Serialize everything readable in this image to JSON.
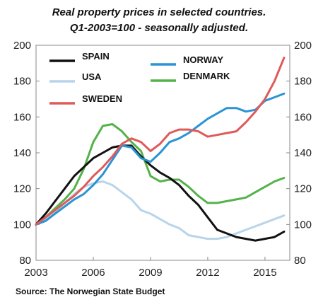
{
  "chart_data": {
    "type": "line",
    "title": "Real property prices in selected countries.",
    "subtitle": "Q1-2003=100 - seasonally adjusted.",
    "source": "Source: The Norwegian State Budget",
    "xlabel": "",
    "ylabel": "",
    "xlim": [
      2003,
      2016.3
    ],
    "ylim": [
      80,
      200
    ],
    "x_ticks": [
      2003,
      2006,
      2009,
      2012,
      2015
    ],
    "y_ticks": [
      80,
      100,
      120,
      140,
      160,
      180,
      200
    ],
    "y_axis_both_sides": true,
    "grid": false,
    "legend_position": "top-left",
    "series": [
      {
        "name": "SPAIN",
        "color": "#111111",
        "points": [
          [
            2003.0,
            100
          ],
          [
            2003.5,
            106
          ],
          [
            2004.0,
            113
          ],
          [
            2004.5,
            120
          ],
          [
            2005.0,
            127
          ],
          [
            2005.5,
            132
          ],
          [
            2006.0,
            137
          ],
          [
            2006.5,
            140
          ],
          [
            2007.0,
            143
          ],
          [
            2007.5,
            144
          ],
          [
            2008.0,
            144
          ],
          [
            2008.5,
            138
          ],
          [
            2009.0,
            133
          ],
          [
            2009.5,
            129
          ],
          [
            2010.0,
            126
          ],
          [
            2010.5,
            122
          ],
          [
            2011.0,
            116
          ],
          [
            2011.5,
            111
          ],
          [
            2012.0,
            104
          ],
          [
            2012.5,
            97
          ],
          [
            2013.0,
            95
          ],
          [
            2013.5,
            93
          ],
          [
            2014.0,
            92
          ],
          [
            2014.5,
            91
          ],
          [
            2015.0,
            92
          ],
          [
            2015.5,
            93
          ],
          [
            2016.0,
            96
          ]
        ]
      },
      {
        "name": "USA",
        "color": "#b8d4ea",
        "points": [
          [
            2003.0,
            100
          ],
          [
            2003.5,
            103
          ],
          [
            2004.0,
            107
          ],
          [
            2004.5,
            112
          ],
          [
            2005.0,
            117
          ],
          [
            2005.5,
            121
          ],
          [
            2006.0,
            123
          ],
          [
            2006.5,
            124
          ],
          [
            2007.0,
            122
          ],
          [
            2007.5,
            118
          ],
          [
            2008.0,
            114
          ],
          [
            2008.5,
            108
          ],
          [
            2009.0,
            106
          ],
          [
            2009.5,
            103
          ],
          [
            2010.0,
            100
          ],
          [
            2010.5,
            98
          ],
          [
            2011.0,
            94
          ],
          [
            2011.5,
            93
          ],
          [
            2012.0,
            92
          ],
          [
            2012.5,
            92
          ],
          [
            2013.0,
            93
          ],
          [
            2013.5,
            95
          ],
          [
            2014.0,
            97
          ],
          [
            2014.5,
            99
          ],
          [
            2015.0,
            101
          ],
          [
            2015.5,
            103
          ],
          [
            2016.0,
            105
          ]
        ]
      },
      {
        "name": "SWEDEN",
        "color": "#e05a5a",
        "points": [
          [
            2003.0,
            100
          ],
          [
            2003.5,
            104
          ],
          [
            2004.0,
            108
          ],
          [
            2004.5,
            112
          ],
          [
            2005.0,
            116
          ],
          [
            2005.5,
            121
          ],
          [
            2006.0,
            127
          ],
          [
            2006.5,
            132
          ],
          [
            2007.0,
            138
          ],
          [
            2007.5,
            145
          ],
          [
            2008.0,
            148
          ],
          [
            2008.5,
            146
          ],
          [
            2009.0,
            141
          ],
          [
            2009.5,
            145
          ],
          [
            2010.0,
            151
          ],
          [
            2010.5,
            153
          ],
          [
            2011.0,
            153
          ],
          [
            2011.5,
            152
          ],
          [
            2012.0,
            149
          ],
          [
            2012.5,
            150
          ],
          [
            2013.0,
            151
          ],
          [
            2013.5,
            152
          ],
          [
            2014.0,
            157
          ],
          [
            2014.5,
            163
          ],
          [
            2015.0,
            170
          ],
          [
            2015.5,
            180
          ],
          [
            2016.0,
            193
          ]
        ]
      },
      {
        "name": "NORWAY",
        "color": "#2a94d4",
        "points": [
          [
            2003.0,
            100
          ],
          [
            2003.5,
            102
          ],
          [
            2004.0,
            106
          ],
          [
            2004.5,
            110
          ],
          [
            2005.0,
            114
          ],
          [
            2005.5,
            117
          ],
          [
            2006.0,
            122
          ],
          [
            2006.5,
            128
          ],
          [
            2007.0,
            136
          ],
          [
            2007.5,
            144
          ],
          [
            2008.0,
            143
          ],
          [
            2008.5,
            137
          ],
          [
            2009.0,
            135
          ],
          [
            2009.5,
            140
          ],
          [
            2010.0,
            146
          ],
          [
            2010.5,
            148
          ],
          [
            2011.0,
            151
          ],
          [
            2011.5,
            155
          ],
          [
            2012.0,
            159
          ],
          [
            2012.5,
            162
          ],
          [
            2013.0,
            165
          ],
          [
            2013.5,
            165
          ],
          [
            2014.0,
            163
          ],
          [
            2014.5,
            164
          ],
          [
            2015.0,
            169
          ],
          [
            2015.5,
            171
          ],
          [
            2016.0,
            173
          ]
        ]
      },
      {
        "name": "DENMARK",
        "color": "#55b24a",
        "points": [
          [
            2003.0,
            100
          ],
          [
            2003.5,
            104
          ],
          [
            2004.0,
            109
          ],
          [
            2004.5,
            114
          ],
          [
            2005.0,
            120
          ],
          [
            2005.5,
            131
          ],
          [
            2006.0,
            146
          ],
          [
            2006.5,
            155
          ],
          [
            2007.0,
            156
          ],
          [
            2007.5,
            152
          ],
          [
            2008.0,
            146
          ],
          [
            2008.5,
            141
          ],
          [
            2009.0,
            127
          ],
          [
            2009.5,
            124
          ],
          [
            2010.0,
            125
          ],
          [
            2010.5,
            125
          ],
          [
            2011.0,
            121
          ],
          [
            2011.5,
            116
          ],
          [
            2012.0,
            112
          ],
          [
            2012.5,
            112
          ],
          [
            2013.0,
            113
          ],
          [
            2013.5,
            114
          ],
          [
            2014.0,
            115
          ],
          [
            2014.5,
            118
          ],
          [
            2015.0,
            121
          ],
          [
            2015.5,
            124
          ],
          [
            2016.0,
            126
          ]
        ]
      }
    ]
  }
}
